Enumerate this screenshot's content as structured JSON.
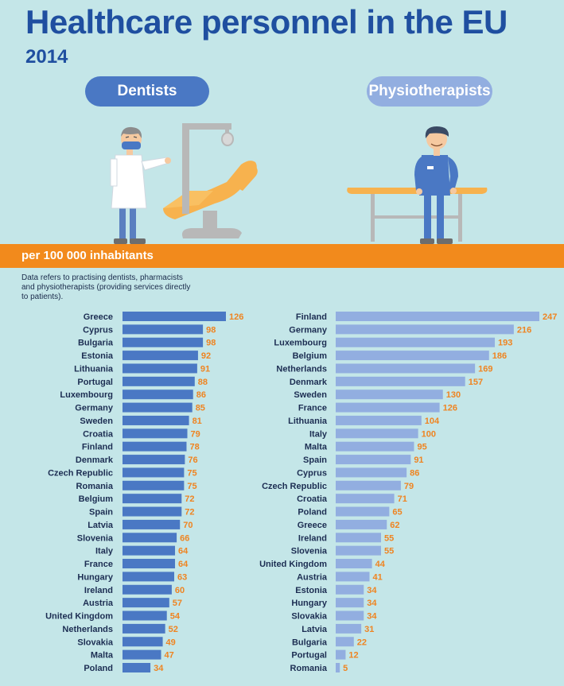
{
  "header": {
    "title": "Healthcare personnel in the EU",
    "year": "2014"
  },
  "pills": {
    "dentists": "Dentists",
    "physiotherapists": "Physiotherapists"
  },
  "band": {
    "label": "per 100 000  inhabitants"
  },
  "note": "Data refers to practising dentists, pharmacists and physiotherapists (providing services directly to patients).",
  "colors": {
    "dentist_bar": "#4a78c4",
    "physio_bar": "#92aee0",
    "value_label": "#ef8421",
    "title": "#1f4fa0",
    "band": "#f28a1c",
    "background": "#c4e6e8"
  },
  "chart_data": [
    {
      "type": "bar",
      "orientation": "horizontal",
      "title": "Dentists",
      "categories": [
        "Greece",
        "Cyprus",
        "Bulgaria",
        "Estonia",
        "Lithuania",
        "Portugal",
        "Luxembourg",
        "Germany",
        "Sweden",
        "Croatia",
        "Finland",
        "Denmark",
        "Czech Republic",
        "Romania",
        "Belgium",
        "Spain",
        "Latvia",
        "Slovenia",
        "Italy",
        "France",
        "Hungary",
        "Ireland",
        "Austria",
        "United Kingdom",
        "Netherlands",
        "Slovakia",
        "Malta",
        "Poland"
      ],
      "values": [
        126,
        98,
        98,
        92,
        91,
        88,
        86,
        85,
        81,
        79,
        78,
        76,
        75,
        75,
        72,
        72,
        70,
        66,
        64,
        64,
        63,
        60,
        57,
        54,
        52,
        49,
        47,
        34
      ],
      "grid": false,
      "data_labels": true
    },
    {
      "type": "bar",
      "orientation": "horizontal",
      "title": "Physiotherapists",
      "categories": [
        "Finland",
        "Germany",
        "Luxembourg",
        "Belgium",
        "Netherlands",
        "Denmark",
        "Sweden",
        "France",
        "Lithuania",
        "Italy",
        "Malta",
        "Spain",
        "Cyprus",
        "Czech Republic",
        "Croatia",
        "Poland",
        "Greece",
        "Ireland",
        "Slovenia",
        "United Kingdom",
        "Austria",
        "Estonia",
        "Hungary",
        "Slovakia",
        "Latvia",
        "Bulgaria",
        "Portugal",
        "Romania"
      ],
      "values": [
        247,
        216,
        193,
        186,
        169,
        157,
        130,
        126,
        104,
        100,
        95,
        91,
        86,
        79,
        71,
        65,
        62,
        55,
        55,
        44,
        41,
        34,
        34,
        34,
        31,
        22,
        12,
        5
      ],
      "grid": false,
      "data_labels": true
    }
  ]
}
